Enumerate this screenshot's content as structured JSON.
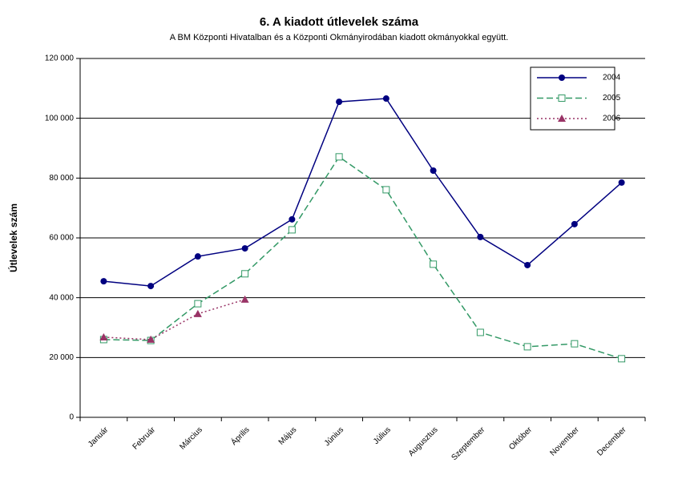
{
  "chart_data": {
    "type": "line",
    "title": "6. A  kiadott útlevelek száma",
    "subtitle": "A BM Központi Hivatalban és a Központi Okmányirodában kiadott okmányokkal együtt.",
    "y_label": "Útlevelek szám",
    "categories": [
      "Január",
      "Február",
      "Március",
      "Április",
      "Május",
      "Június",
      "Július",
      "Augusztus",
      "Szeptember",
      "Október",
      "November",
      "December"
    ],
    "series": [
      {
        "name": "2004",
        "color": "#000080",
        "marker": "circle",
        "dash": "none",
        "values": [
          45500,
          43900,
          53800,
          56500,
          66200,
          105500,
          106600,
          82500,
          60300,
          50900,
          64600,
          78500
        ]
      },
      {
        "name": "2005",
        "color": "#339966",
        "marker": "square",
        "dash": "8,4",
        "values": [
          26000,
          25700,
          38000,
          48000,
          62700,
          87100,
          76100,
          51200,
          28400,
          23600,
          24600,
          19600
        ]
      },
      {
        "name": "2006",
        "color": "#993366",
        "marker": "triangle",
        "dash": "2,3",
        "values": [
          26800,
          26000,
          34600,
          39400,
          null,
          null,
          null,
          null,
          null,
          null,
          null,
          null
        ]
      }
    ],
    "ylim": [
      0,
      120000
    ],
    "yticks": [
      0,
      {
        "value": 20000,
        "label": "20 000"
      },
      {
        "value": 40000,
        "label": "40 000"
      },
      {
        "value": 60000,
        "label": "60 000"
      },
      {
        "value": 80000,
        "label": "80 000"
      },
      {
        "value": 100000,
        "label": "100 000"
      },
      {
        "value": 120000,
        "label": "120 000"
      }
    ],
    "grid": true,
    "legend": "top-right"
  }
}
